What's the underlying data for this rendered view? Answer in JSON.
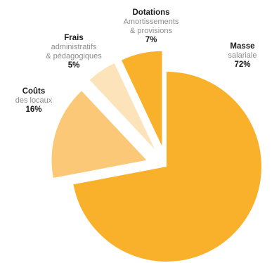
{
  "chart_data": {
    "type": "pie",
    "exploded": true,
    "slices": [
      {
        "title": "Masse",
        "subtitle": "salariale",
        "value": 72,
        "percent_label": "72%",
        "color": "#F9B12C"
      },
      {
        "title": "Coûts",
        "subtitle": "des locaux",
        "value": 16,
        "percent_label": "16%",
        "color": "#FBC878"
      },
      {
        "title": "Frais",
        "subtitle_lines": [
          "administratifs",
          "& pédagogiques"
        ],
        "value": 5,
        "percent_label": "5%",
        "color": "#FDE3BA"
      },
      {
        "title": "Dotations",
        "subtitle_lines": [
          "Amortissements",
          "& provisions"
        ],
        "value": 7,
        "percent_label": "7%",
        "color": "#F9B12C"
      }
    ]
  }
}
